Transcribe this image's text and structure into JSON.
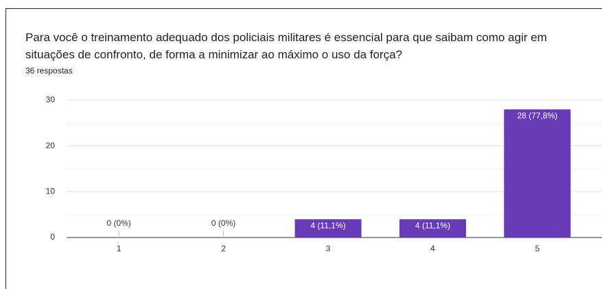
{
  "chart_data": {
    "type": "bar",
    "title": "Para você o treinamento adequado dos policiais militares é essencial para que saibam como agir em situações de confronto, de forma a minimizar ao máximo o uso da força?",
    "subtitle": "36 respostas",
    "categories": [
      "1",
      "2",
      "3",
      "4",
      "5"
    ],
    "values": [
      0,
      0,
      4,
      4,
      28
    ],
    "value_labels": [
      "0 (0%)",
      "0 (0%)",
      "4 (11,1%)",
      "4 (11,1%)",
      "28 (77,8%)"
    ],
    "color": "#673ab7",
    "ylim": [
      0,
      30
    ],
    "yticks": [
      0,
      10,
      20,
      30
    ],
    "yminor": [
      5,
      15,
      25
    ],
    "grid": true
  }
}
